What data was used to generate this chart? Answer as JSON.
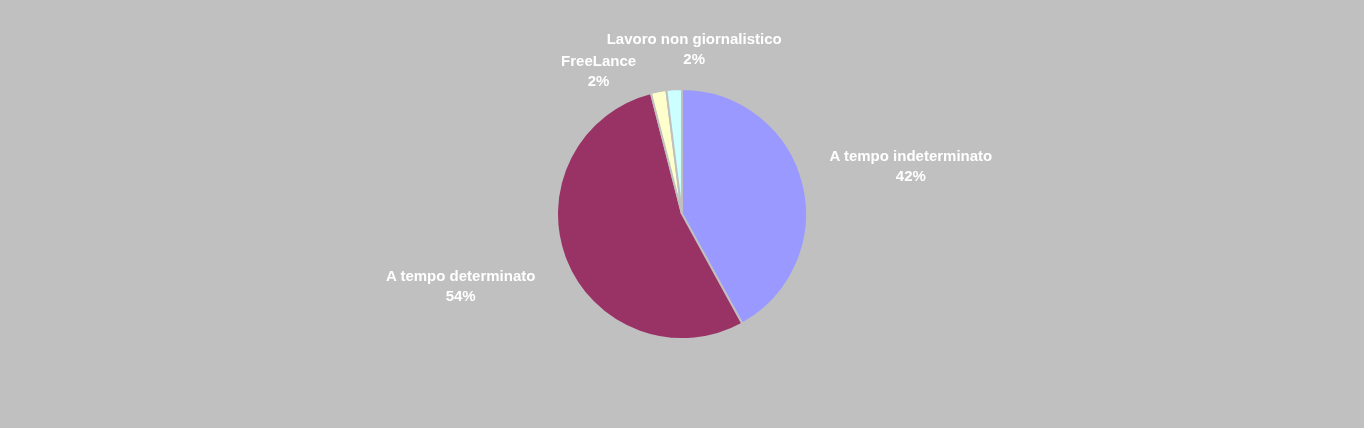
{
  "chart_data": {
    "type": "pie",
    "categories": [
      "A tempo indeterminato",
      "A tempo determinato",
      "FreeLance",
      "Lavoro non giornalistico"
    ],
    "values": [
      42,
      54,
      2,
      2
    ],
    "colors": [
      "#9999ff",
      "#993366",
      "#ffffcc",
      "#ccffff"
    ],
    "value_labels": [
      "42%",
      "54%",
      "2%",
      "2%"
    ]
  }
}
